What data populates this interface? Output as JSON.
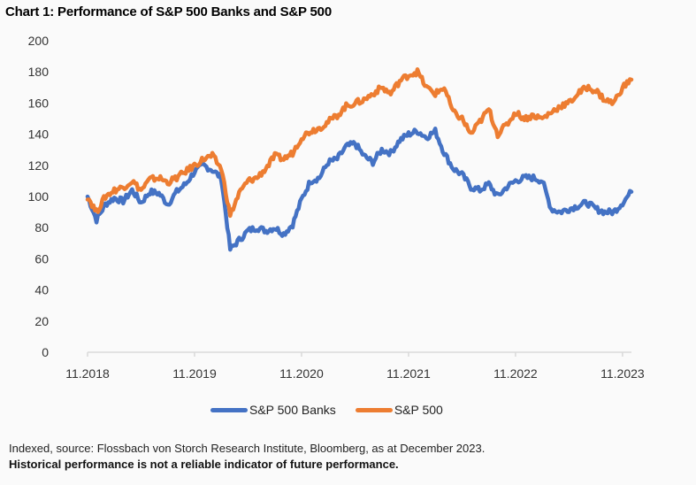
{
  "chart_data": {
    "type": "line",
    "title": "Chart 1: Performance of S&P 500 Banks and S&P 500",
    "xlabel": "",
    "ylabel": "",
    "ylim": [
      0,
      200
    ],
    "yticks": [
      0,
      20,
      40,
      60,
      80,
      100,
      120,
      140,
      160,
      180,
      200
    ],
    "ytick_labels": [
      "0",
      "20",
      "40",
      "60",
      "80",
      "100",
      "120",
      "140",
      "160",
      "180",
      "200"
    ],
    "xticks": [
      "11.2018",
      "11.2019",
      "11.2020",
      "11.2021",
      "11.2022",
      "11.2023"
    ],
    "x_range": [
      "11.2018",
      "12.2023"
    ],
    "grid": false,
    "legend_position": "bottom",
    "x": [
      "11.2018",
      "12.2018",
      "01.2019",
      "02.2019",
      "03.2019",
      "04.2019",
      "05.2019",
      "06.2019",
      "07.2019",
      "08.2019",
      "09.2019",
      "10.2019",
      "11.2019",
      "12.2019",
      "01.2020",
      "02.2020",
      "03.2020",
      "04.2020",
      "05.2020",
      "06.2020",
      "07.2020",
      "08.2020",
      "09.2020",
      "10.2020",
      "11.2020",
      "12.2020",
      "01.2021",
      "02.2021",
      "03.2021",
      "04.2021",
      "05.2021",
      "06.2021",
      "07.2021",
      "08.2021",
      "09.2021",
      "10.2021",
      "11.2021",
      "12.2021",
      "01.2022",
      "02.2022",
      "03.2022",
      "04.2022",
      "05.2022",
      "06.2022",
      "07.2022",
      "08.2022",
      "09.2022",
      "10.2022",
      "11.2022",
      "12.2022",
      "01.2023",
      "02.2023",
      "03.2023",
      "04.2023",
      "05.2023",
      "06.2023",
      "07.2023",
      "08.2023",
      "09.2023",
      "10.2023",
      "11.2023",
      "12.2023"
    ],
    "series": [
      {
        "name": "S&P 500 Banks",
        "color": "#4472c4",
        "values": [
          100,
          85,
          95,
          99,
          97,
          104,
          96,
          103,
          102,
          95,
          103,
          108,
          116,
          120,
          117,
          112,
          66,
          72,
          78,
          80,
          78,
          80,
          76,
          82,
          98,
          110,
          112,
          122,
          124,
          132,
          134,
          126,
          122,
          130,
          128,
          136,
          140,
          142,
          138,
          142,
          128,
          118,
          114,
          106,
          104,
          108,
          100,
          106,
          110,
          112,
          112,
          110,
          92,
          90,
          92,
          94,
          96,
          92,
          90,
          90,
          96,
          103
        ]
      },
      {
        "name": "S&P 500",
        "color": "#ed7d31",
        "values": [
          100,
          90,
          100,
          104,
          106,
          110,
          104,
          111,
          112,
          109,
          112,
          116,
          120,
          124,
          126,
          118,
          88,
          102,
          110,
          112,
          118,
          126,
          124,
          128,
          138,
          142,
          144,
          148,
          152,
          158,
          160,
          162,
          166,
          170,
          166,
          174,
          178,
          180,
          170,
          166,
          170,
          154,
          150,
          140,
          148,
          156,
          140,
          146,
          154,
          150,
          152,
          150,
          154,
          158,
          160,
          166,
          170,
          168,
          162,
          160,
          170,
          175
        ]
      }
    ]
  },
  "footer": {
    "source_note": "Indexed, source: Flossbach von Storch Research Institute, Bloomberg, as at December 2023.",
    "disclaimer": "Historical performance is not a reliable indicator of future performance."
  }
}
